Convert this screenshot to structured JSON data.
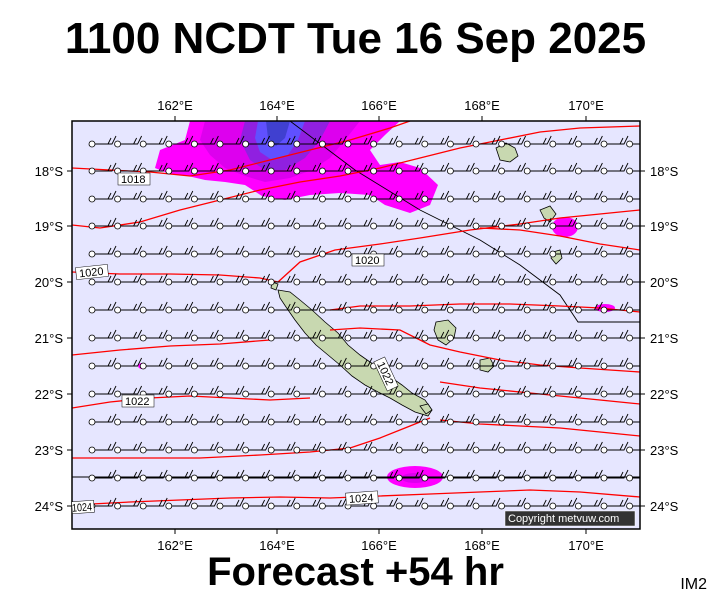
{
  "header": {
    "title": "1100 NCDT Tue 16 Sep 2025"
  },
  "footer": {
    "forecast": "Forecast +54 hr",
    "product_code": "IM2"
  },
  "map": {
    "top_lon_labels": [
      "162°E",
      "164°E",
      "166°E",
      "168°E",
      "170°E"
    ],
    "bottom_lon_labels": [
      "162°E",
      "164°E",
      "166°E",
      "168°E",
      "170°E"
    ],
    "left_lat_labels": [
      "18°S",
      "19°S",
      "20°S",
      "21°S",
      "22°S",
      "23°S",
      "24°S"
    ],
    "right_lat_labels": [
      "18°S",
      "19°S",
      "20°S",
      "21°S",
      "22°S",
      "23°S",
      "24°S"
    ],
    "isobar_labels": [
      "1018",
      "1020",
      "1020",
      "1022",
      "1022",
      "1024",
      "1024"
    ],
    "copyright": "Copyright metvuw.com",
    "colors": {
      "ocean": "#e6e6ff",
      "isobar": "#ff0000",
      "rain_light": "#ff00ff",
      "rain_moderate": "#c000e0",
      "rain_heavy": "#4040ff",
      "land": "#c8d8b0"
    }
  }
}
